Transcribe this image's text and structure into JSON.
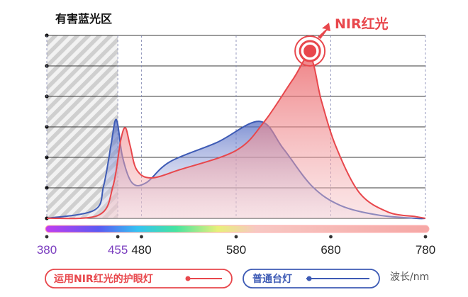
{
  "chart_data": {
    "type": "area",
    "title": "有害蓝光区",
    "annotation": "NIR红光",
    "xlabel": "波长/nm",
    "ylabel": "",
    "xlim": [
      380,
      780
    ],
    "ylim": [
      0,
      1.0
    ],
    "x_ticks": [
      380,
      455,
      480,
      580,
      680,
      780
    ],
    "x_tick_labels": [
      "380",
      "455",
      "480",
      "580",
      "680",
      "780"
    ],
    "highlight_region": {
      "label": "有害蓝光区",
      "from": 380,
      "to": 455
    },
    "series": [
      {
        "name": "运用NIR红光的护眼灯",
        "color": "#e8474c",
        "x": [
          380,
          435,
          450,
          458,
          463,
          468,
          475,
          490,
          520,
          580,
          610,
          640,
          658,
          670,
          685,
          710,
          740,
          770,
          780
        ],
        "y": [
          0.0,
          0.02,
          0.2,
          0.48,
          0.56,
          0.45,
          0.3,
          0.25,
          0.3,
          0.42,
          0.6,
          0.86,
          1.0,
          0.73,
          0.45,
          0.16,
          0.04,
          0.01,
          0.0
        ]
      },
      {
        "name": "普通台灯",
        "color": "#3e5bb5",
        "x": [
          380,
          430,
          440,
          448,
          452,
          455,
          460,
          470,
          485,
          510,
          560,
          605,
          630,
          660,
          690,
          730,
          770,
          780
        ],
        "y": [
          0.0,
          0.05,
          0.2,
          0.46,
          0.6,
          0.58,
          0.38,
          0.22,
          0.22,
          0.35,
          0.47,
          0.6,
          0.43,
          0.2,
          0.08,
          0.02,
          0.0,
          0.0
        ]
      }
    ],
    "grid": true,
    "legend": "bottom"
  }
}
